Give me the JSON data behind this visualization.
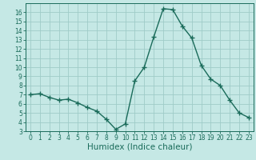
{
  "x": [
    0,
    1,
    2,
    3,
    4,
    5,
    6,
    7,
    8,
    9,
    10,
    11,
    12,
    13,
    14,
    15,
    16,
    17,
    18,
    19,
    20,
    21,
    22,
    23
  ],
  "y": [
    7.0,
    7.1,
    6.7,
    6.4,
    6.5,
    6.1,
    5.6,
    5.2,
    4.3,
    3.2,
    3.8,
    8.5,
    10.0,
    13.3,
    16.4,
    16.3,
    14.5,
    13.2,
    10.2,
    8.7,
    8.0,
    6.4,
    5.0,
    4.5
  ],
  "line_color": "#1a6b5a",
  "marker": "+",
  "marker_size": 4,
  "bg_color": "#c5e8e5",
  "grid_color": "#9fccc8",
  "xlabel": "Humidex (Indice chaleur)",
  "xlim": [
    -0.5,
    23.5
  ],
  "ylim": [
    3,
    17
  ],
  "yticks": [
    3,
    4,
    5,
    6,
    7,
    8,
    9,
    10,
    11,
    12,
    13,
    14,
    15,
    16
  ],
  "xticks": [
    0,
    1,
    2,
    3,
    4,
    5,
    6,
    7,
    8,
    9,
    10,
    11,
    12,
    13,
    14,
    15,
    16,
    17,
    18,
    19,
    20,
    21,
    22,
    23
  ],
  "tick_fontsize": 5.5,
  "xlabel_fontsize": 7.5
}
